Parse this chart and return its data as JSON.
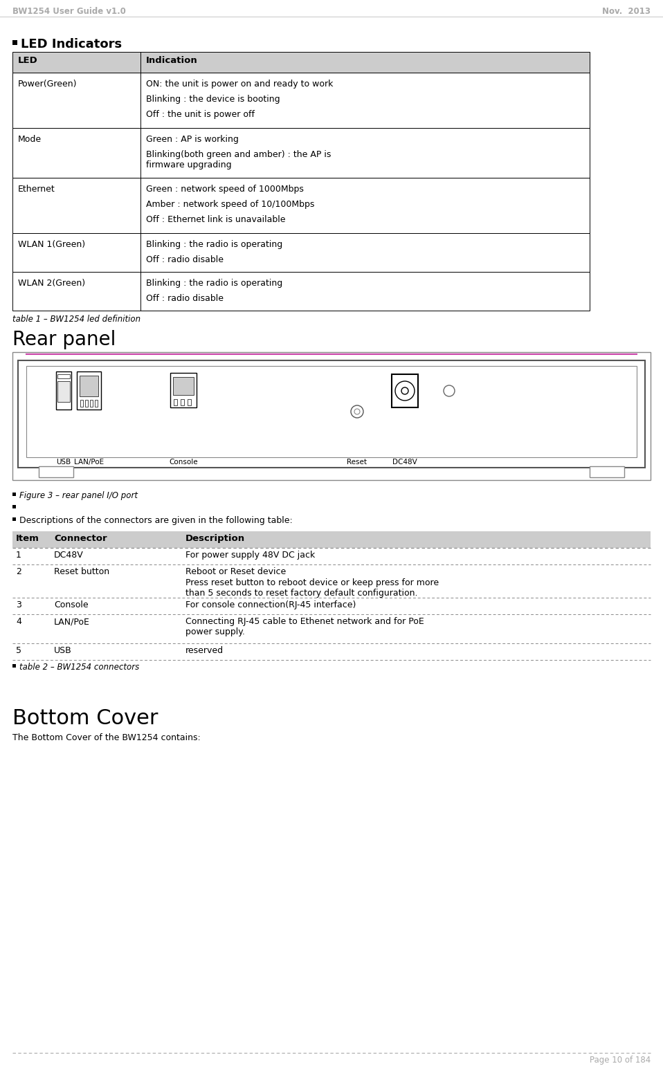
{
  "header_left": "BW1254 User Guide v1.0",
  "header_right": "Nov.  2013",
  "header_color": "#aaaaaa",
  "bg_color": "#ffffff",
  "led_section_title": "LED Indicators",
  "led_table_headers": [
    "LED",
    "Indication"
  ],
  "led_table_header_bg": "#cccccc",
  "led_table_rows": [
    {
      "col1": "Power(Green)",
      "col2": [
        "ON: the unit is power on and ready to work",
        "Blinking : the device is booting",
        "Off : the unit is power off"
      ]
    },
    {
      "col1": "Mode",
      "col2": [
        "Green : AP is working",
        "Blinking(both green and amber) : the AP is\nfirmware upgrading"
      ]
    },
    {
      "col1": "Ethernet",
      "col2": [
        "Green : network speed of 1000Mbps",
        "Amber : network speed of 10/100Mbps",
        "Off : Ethernet link is unavailable"
      ]
    },
    {
      "col1": "WLAN 1(Green)",
      "col2": [
        "Blinking : the radio is operating",
        "Off : radio disable"
      ]
    },
    {
      "col1": "WLAN 2(Green)",
      "col2": [
        "Blinking : the radio is operating",
        "Off : radio disable"
      ]
    }
  ],
  "table1_caption": "table 1 – BW1254 led definition",
  "rear_panel_title": "Rear panel",
  "figure3_caption": "Figure 3 – rear panel I/O port",
  "desc_text": "Descriptions of the connectors are given in the following table:",
  "connectors_table_headers": [
    "Item",
    "Connector",
    "Description"
  ],
  "connectors_table_header_bg": "#cccccc",
  "connectors_table_header_fg": "#000000",
  "connectors_rows": [
    {
      "item": "1",
      "connector": "DC48V",
      "description": [
        "For power supply 48V DC jack"
      ]
    },
    {
      "item": "2",
      "connector": "Reset button",
      "description": [
        "Reboot or Reset device",
        "Press reset button to reboot device or keep press for more\nthan 5 seconds to reset factory default configuration."
      ]
    },
    {
      "item": "3",
      "connector": "Console",
      "description": [
        "For console connection(RJ-45 interface)"
      ]
    },
    {
      "item": "4",
      "connector": "LAN/PoE",
      "description": [
        "Connecting RJ-45 cable to Ethenet network and for PoE\npower supply."
      ]
    },
    {
      "item": "5",
      "connector": "USB",
      "description": [
        "reserved"
      ]
    }
  ],
  "table2_caption": "table 2 – BW1254 connectors",
  "bottom_cover_title": "Bottom Cover",
  "bottom_cover_text": "The Bottom Cover of the BW1254 contains:",
  "footer_text": "Page 10 of 184",
  "footer_color": "#aaaaaa"
}
